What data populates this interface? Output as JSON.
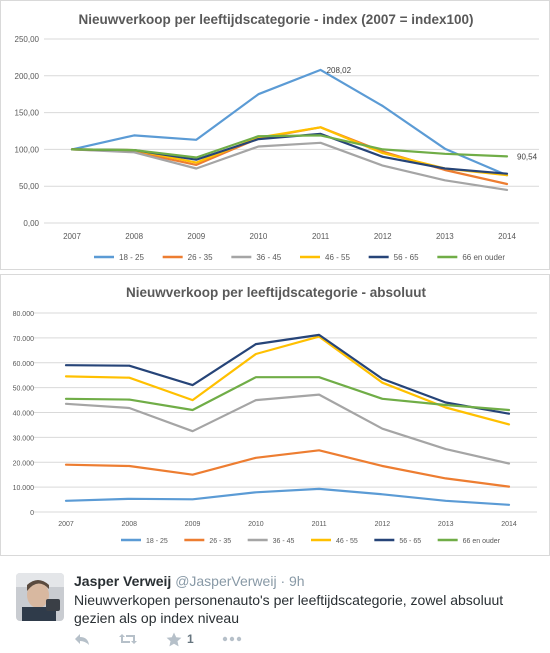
{
  "chart_data": [
    {
      "type": "line",
      "title": "Nieuwverkoop per leeftijdscategorie - index (2007 = index100)",
      "categories": [
        "2007",
        "2008",
        "2009",
        "2010",
        "2011",
        "2012",
        "2013",
        "2014"
      ],
      "ylim": [
        0,
        250
      ],
      "yticks": [
        "0,00",
        "50,00",
        "100,00",
        "150,00",
        "200,00",
        "250,00"
      ],
      "grid": true,
      "legend": "bottom",
      "series": [
        {
          "name": "18 - 25",
          "color": "#5b9bd5",
          "values": [
            100,
            119,
            113,
            175,
            208.02,
            159,
            101,
            65
          ]
        },
        {
          "name": "26 - 35",
          "color": "#ed7d31",
          "values": [
            100,
            97,
            79,
            115,
            130,
            97,
            72,
            53
          ]
        },
        {
          "name": "36 - 45",
          "color": "#a5a5a5",
          "values": [
            100,
            96,
            74,
            104,
            109,
            78,
            58,
            45
          ]
        },
        {
          "name": "46 - 55",
          "color": "#ffc000",
          "values": [
            100,
            99,
            82,
            116,
            130,
            95,
            74,
            65
          ]
        },
        {
          "name": "56 - 65",
          "color": "#264478",
          "values": [
            100,
            99,
            86,
            114,
            121,
            90,
            74,
            67
          ]
        },
        {
          "name": "66 en ouder",
          "color": "#70ad47",
          "values": [
            100,
            99,
            89,
            118,
            119,
            100,
            94,
            90.54
          ]
        }
      ],
      "annotations": [
        "208,02",
        "90,54"
      ]
    },
    {
      "type": "line",
      "title": "Nieuwverkoop per leeftijdscategorie - absoluut",
      "categories": [
        "2007",
        "2008",
        "2009",
        "2010",
        "2011",
        "2012",
        "2013",
        "2014"
      ],
      "ylim": [
        0,
        80000
      ],
      "yticks": [
        "0",
        "10.000",
        "20.000",
        "30.000",
        "40.000",
        "50.000",
        "60.000",
        "70.000",
        "80.000"
      ],
      "grid": true,
      "legend": "bottom",
      "series": [
        {
          "name": "18 - 25",
          "color": "#5b9bd5",
          "values": [
            4500,
            5300,
            5100,
            7900,
            9300,
            7100,
            4500,
            2900
          ]
        },
        {
          "name": "26 - 35",
          "color": "#ed7d31",
          "values": [
            19000,
            18500,
            15000,
            21800,
            24800,
            18500,
            13500,
            10200
          ]
        },
        {
          "name": "36 - 45",
          "color": "#a5a5a5",
          "values": [
            43500,
            41800,
            32500,
            45000,
            47200,
            33500,
            25300,
            19500
          ]
        },
        {
          "name": "46 - 55",
          "color": "#ffc000",
          "values": [
            54500,
            54000,
            45000,
            63500,
            70500,
            52000,
            42000,
            35200
          ]
        },
        {
          "name": "56 - 65",
          "color": "#264478",
          "values": [
            59000,
            58800,
            51000,
            67500,
            71200,
            53500,
            44000,
            39500
          ]
        },
        {
          "name": "66 en ouder",
          "color": "#70ad47",
          "values": [
            45500,
            45200,
            41000,
            54200,
            54200,
            45500,
            43000,
            41000
          ]
        }
      ]
    }
  ],
  "tweet": {
    "author_name": "Jasper Verweij",
    "author_handle": "@JasperVerweij",
    "separator": "·",
    "time": "9h",
    "text": "Nieuwverkopen personenauto's per leeftijdscategorie, zowel absoluut gezien als op index niveau",
    "actions": {
      "reply_icon": "reply-icon",
      "retweet_icon": "retweet-icon",
      "favorite_icon": "star-icon",
      "favorite_count": "1",
      "more_icon": "more-icon"
    }
  }
}
